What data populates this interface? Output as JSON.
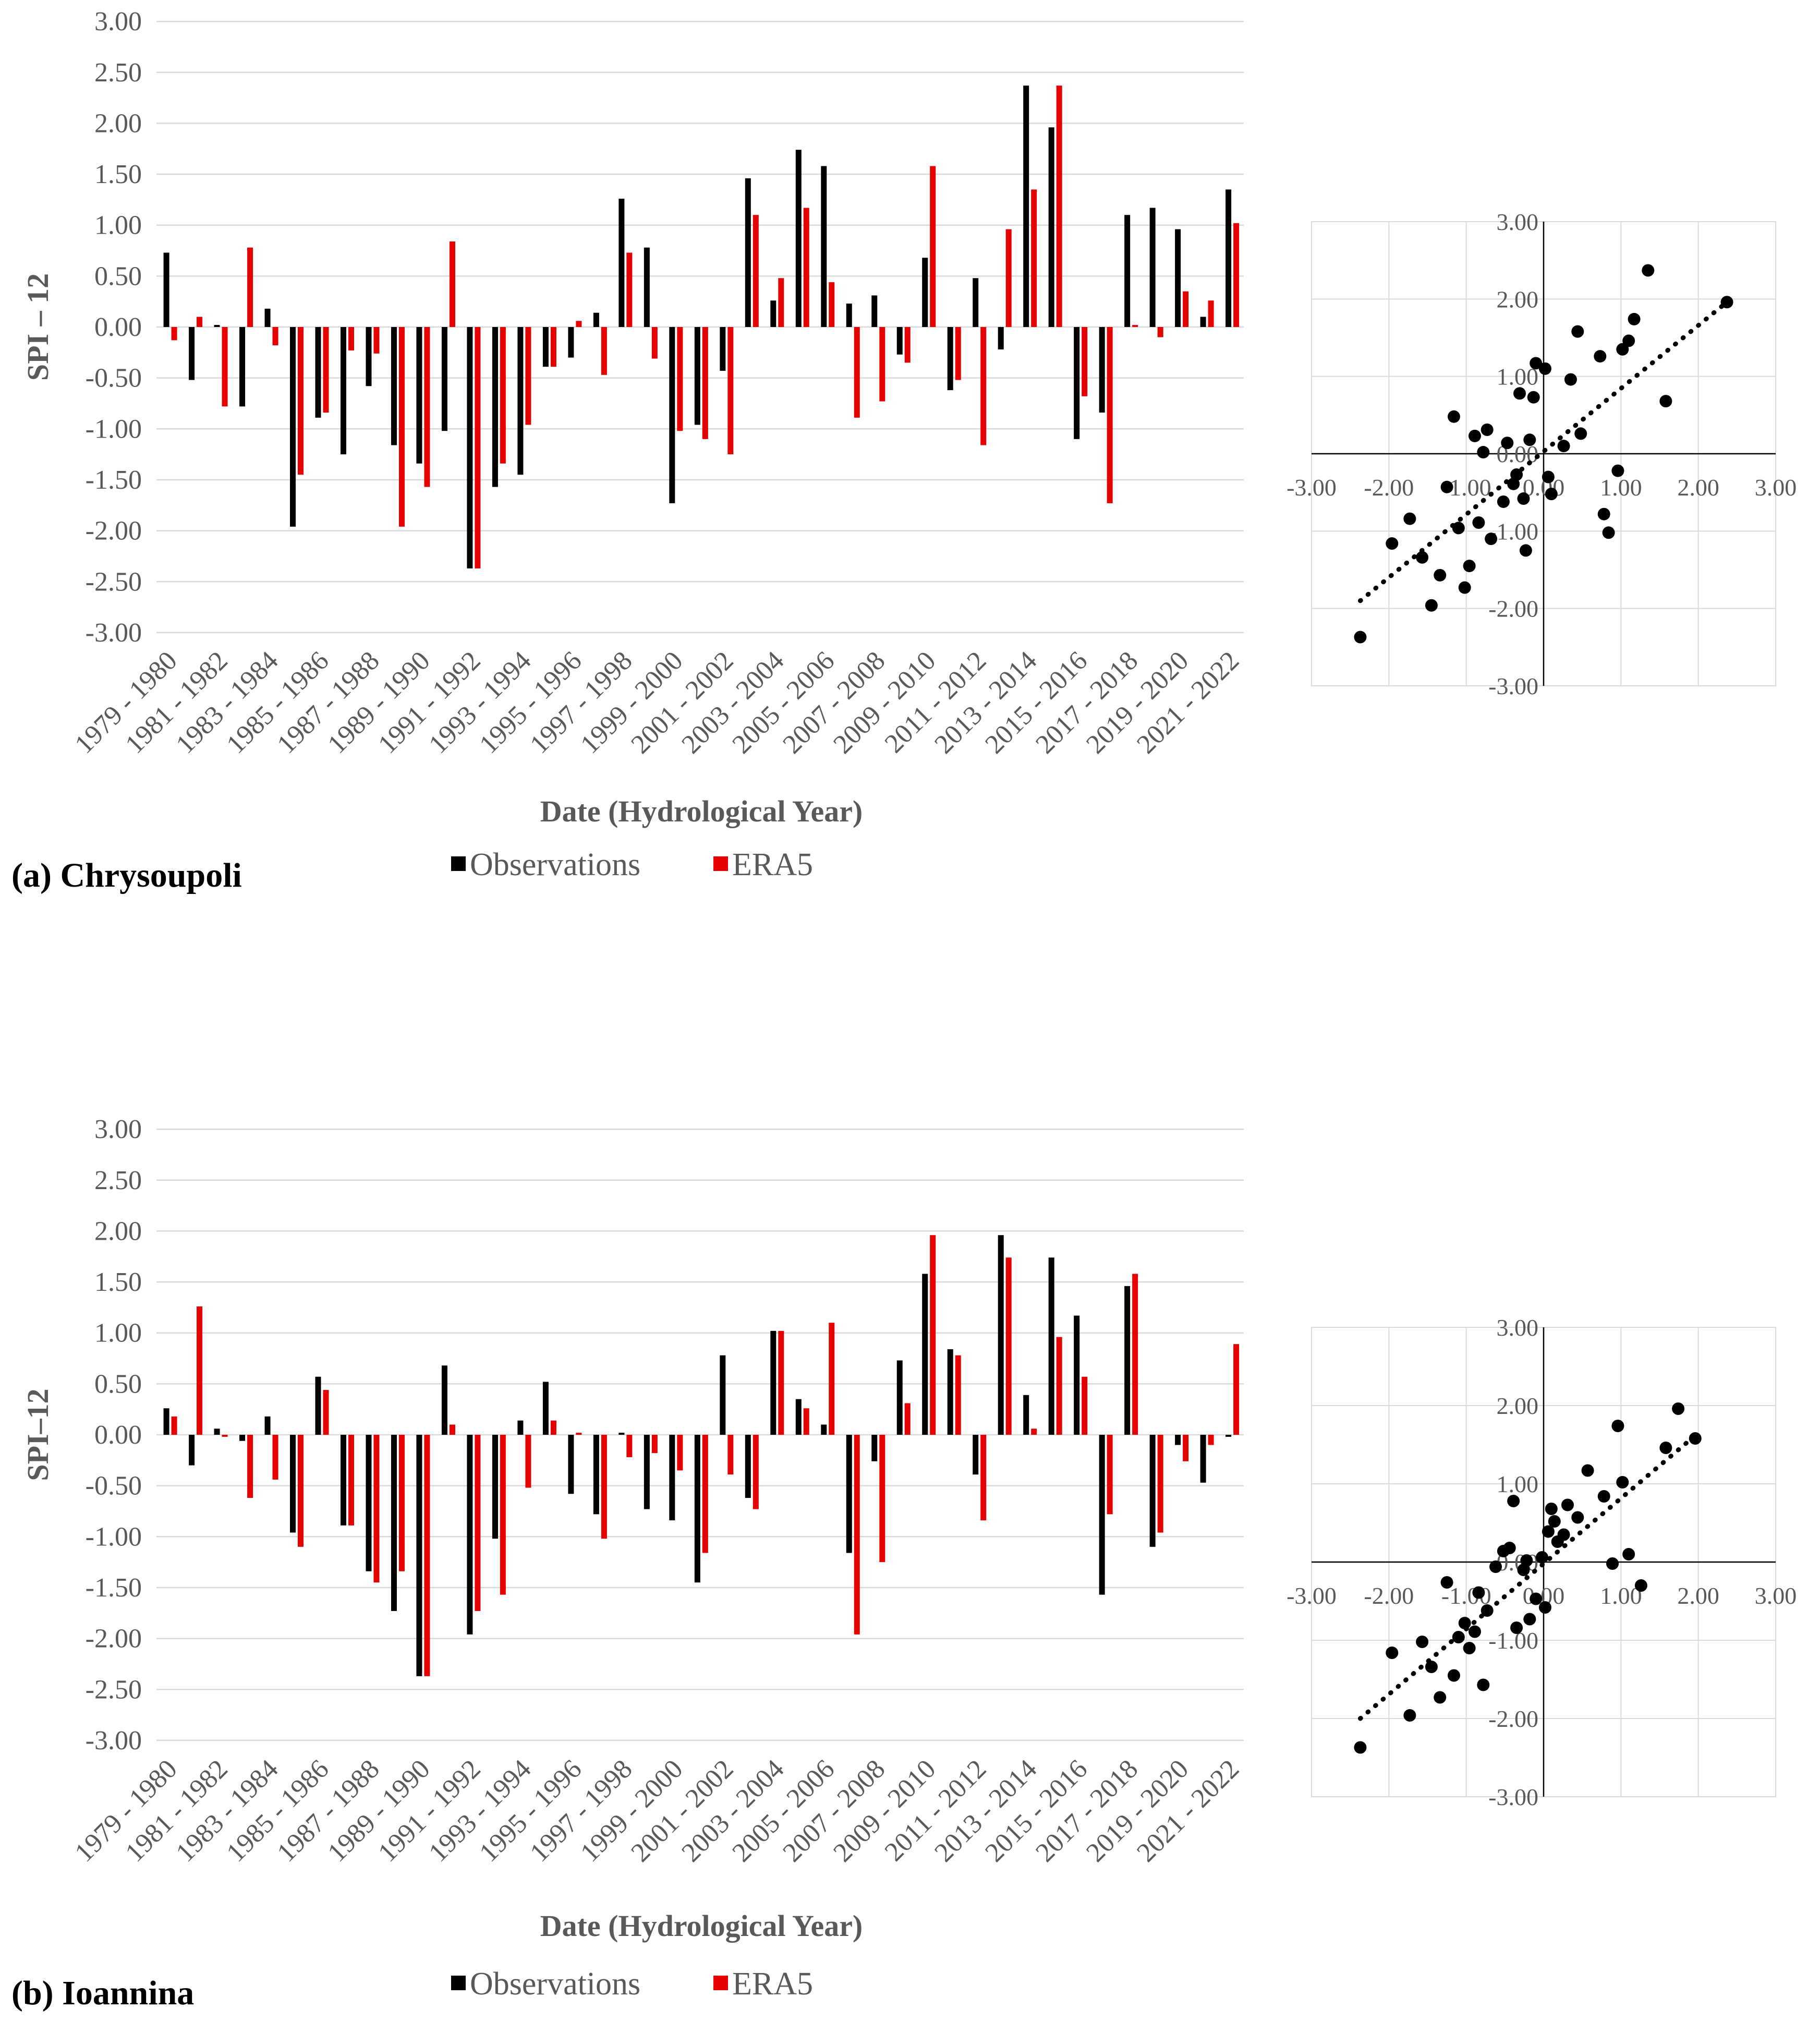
{
  "categories": [
    "1979 - 1980",
    "1980 - 1981",
    "1981 - 1982",
    "1982 - 1983",
    "1983 - 1984",
    "1984 - 1985",
    "1985 - 1986",
    "1986 - 1987",
    "1987 - 1988",
    "1988 - 1989",
    "1989 - 1990",
    "1990 - 1991",
    "1991 - 1992",
    "1992 - 1993",
    "1993 - 1994",
    "1994 - 1995",
    "1995 - 1996",
    "1996 - 1997",
    "1997 - 1998",
    "1998 - 1999",
    "1999 - 2000",
    "2000 - 2001",
    "2001 - 2002",
    "2002 - 2003",
    "2003 - 2004",
    "2004 - 2005",
    "2005 - 2006",
    "2006 - 2007",
    "2007 - 2008",
    "2008 - 2009",
    "2009 - 2010",
    "2010 - 2011",
    "2011 - 2012",
    "2012 - 2013",
    "2013 - 2014",
    "2014 - 2015",
    "2015 - 2016",
    "2016 - 2017",
    "2017 - 2018",
    "2018 - 2019",
    "2019 - 2020",
    "2020 - 2021",
    "2021 - 2022"
  ],
  "tick_labels": [
    "1979 - 1980",
    "1981 - 1982",
    "1983 - 1984",
    "1985 - 1986",
    "1987 - 1988",
    "1989 - 1990",
    "1991 - 1992",
    "1993 - 1994",
    "1995 - 1996",
    "1997 - 1998",
    "1999 - 2000",
    "2001 - 2002",
    "2003 - 2004",
    "2005 - 2006",
    "2007 - 2008",
    "2009 - 2010",
    "2011 - 2012",
    "2013 - 2014",
    "2015 - 2016",
    "2017 - 2018",
    "2019 - 2020",
    "2021 - 2022"
  ],
  "y_ticks": [
    "3.00",
    "2.50",
    "2.00",
    "1.50",
    "1.00",
    "0.50",
    "0.00",
    "-0.50",
    "-1.00",
    "-1.50",
    "-2.00",
    "-2.50",
    "-3.00"
  ],
  "scatter_ticks": [
    "-3.00",
    "-2.00",
    "-1.00",
    "0.00",
    "1.00",
    "2.00",
    "3.00"
  ],
  "legend": {
    "obs": "Observations",
    "era5": "ERA5"
  },
  "colors": {
    "obs": "#000000",
    "era5": "#e60000",
    "grid": "#d9d9d9",
    "text": "#595959"
  },
  "chart_data": [
    {
      "type": "bar",
      "panel_label": "(a) Chrysoupoli",
      "xlabel": "Date (Hydrological Year)",
      "ylabel": "SPI – 12",
      "ylim": [
        -3,
        3
      ],
      "series": [
        {
          "name": "Observations",
          "values": [
            0.73,
            -0.52,
            0.02,
            -0.78,
            0.18,
            -1.96,
            -0.89,
            -1.25,
            -0.58,
            -1.16,
            -1.34,
            -1.02,
            -2.37,
            -1.57,
            -1.45,
            -0.39,
            -0.3,
            0.14,
            1.26,
            0.78,
            -1.73,
            -0.96,
            -0.43,
            1.46,
            0.26,
            1.74,
            1.58,
            0.23,
            0.31,
            -0.27,
            0.68,
            -0.62,
            0.48,
            -0.22,
            2.37,
            1.96,
            -1.1,
            -0.84,
            1.1,
            1.17,
            0.96,
            0.1,
            1.35
          ]
        },
        {
          "name": "ERA5",
          "values": [
            -0.13,
            0.1,
            -0.78,
            0.78,
            -0.18,
            -1.45,
            -0.84,
            -0.23,
            -0.26,
            -1.96,
            -1.57,
            0.84,
            -2.37,
            -1.34,
            -0.96,
            -0.39,
            0.06,
            -0.47,
            0.73,
            -0.31,
            -1.02,
            -1.1,
            -1.25,
            1.1,
            0.48,
            1.17,
            0.44,
            -0.89,
            -0.73,
            -0.35,
            1.58,
            -0.52,
            -1.16,
            0.96,
            1.35,
            2.37,
            -0.68,
            -1.73,
            0.02,
            -0.1,
            0.35,
            0.26,
            1.02
          ]
        }
      ],
      "scatter": {
        "xlim": [
          -3,
          3
        ],
        "ylim": [
          -3,
          3
        ],
        "trendline": {
          "style": "dotted",
          "from": [
            -2.37,
            -1.9
          ],
          "to": [
            2.37,
            1.96
          ]
        }
      }
    },
    {
      "type": "bar",
      "panel_label": "(b) Ioannina",
      "xlabel": "Date (Hydrological Year)",
      "ylabel": "SPI–12",
      "ylim": [
        -3,
        3
      ],
      "series": [
        {
          "name": "Observations",
          "values": [
            0.26,
            -0.3,
            0.06,
            -0.06,
            0.18,
            -0.96,
            0.57,
            -0.89,
            -1.34,
            -1.73,
            -2.37,
            0.68,
            -1.96,
            -1.02,
            0.14,
            0.52,
            -0.58,
            -0.78,
            0.02,
            -0.73,
            -0.84,
            -1.45,
            0.78,
            -0.62,
            1.02,
            0.35,
            0.1,
            -1.16,
            -0.26,
            0.73,
            1.58,
            0.84,
            -0.39,
            1.96,
            0.39,
            1.74,
            1.17,
            -1.57,
            1.46,
            -1.1,
            -0.1,
            -0.47,
            -0.02
          ]
        },
        {
          "name": "ERA5",
          "values": [
            0.18,
            1.26,
            -0.02,
            -0.62,
            -0.44,
            -1.1,
            0.44,
            -0.89,
            -1.45,
            -1.34,
            -2.37,
            0.1,
            -1.73,
            -1.57,
            -0.52,
            0.14,
            0.02,
            -1.02,
            -0.22,
            -0.18,
            -0.35,
            -1.16,
            -0.39,
            -0.73,
            1.02,
            0.26,
            1.1,
            -1.96,
            -1.25,
            0.31,
            1.96,
            0.78,
            -0.84,
            1.74,
            0.06,
            0.96,
            0.57,
            -0.78,
            1.58,
            -0.96,
            -0.26,
            -0.1,
            0.89
          ]
        }
      ],
      "scatter": {
        "xlim": [
          -3,
          3
        ],
        "ylim": [
          -3,
          3
        ],
        "trendline": {
          "style": "dotted",
          "from": [
            -2.37,
            -2.0
          ],
          "to": [
            2.0,
            1.65
          ]
        }
      }
    }
  ]
}
